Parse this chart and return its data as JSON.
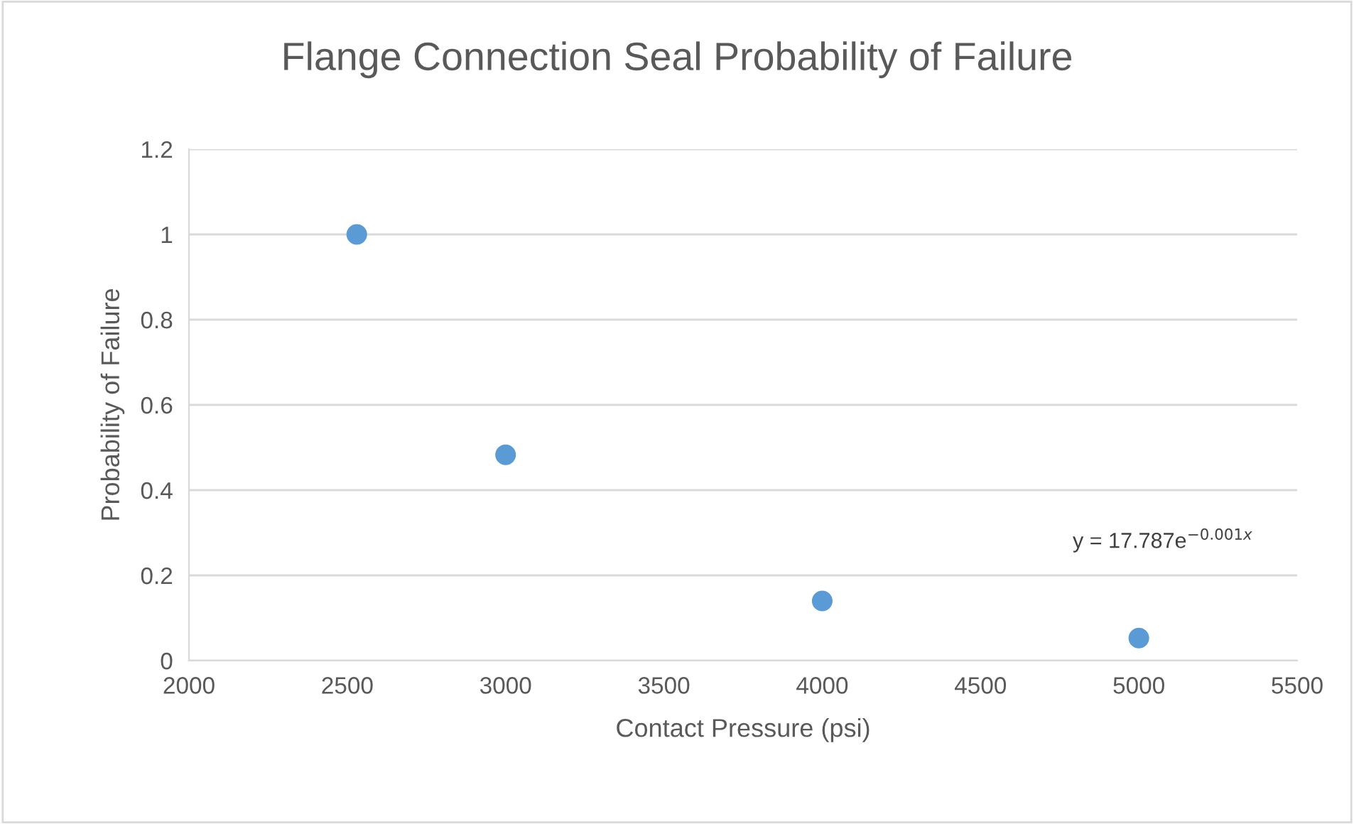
{
  "chart_data": {
    "type": "scatter",
    "title": "Flange Connection Seal Probability of Failure",
    "xlabel": "Contact Pressure (psi)",
    "ylabel": "Probability of Failure",
    "x": [
      2530,
      3000,
      4000,
      5000
    ],
    "series": [
      {
        "color": "#5b9bd5",
        "values": [
          1.0,
          0.483,
          0.14,
          0.053
        ]
      }
    ],
    "xlim": [
      2000,
      5500
    ],
    "xticks": [
      2000,
      2500,
      3000,
      3500,
      4000,
      4500,
      5000,
      5500
    ],
    "ylim": [
      0,
      1.2
    ],
    "yticks": [
      0,
      0.2,
      0.4,
      0.6,
      0.8,
      1,
      1.2
    ],
    "grid": "y",
    "marker": "circle",
    "legend": false,
    "annotations": [
      "y = 17.787e$^{−0.001x}$"
    ]
  }
}
